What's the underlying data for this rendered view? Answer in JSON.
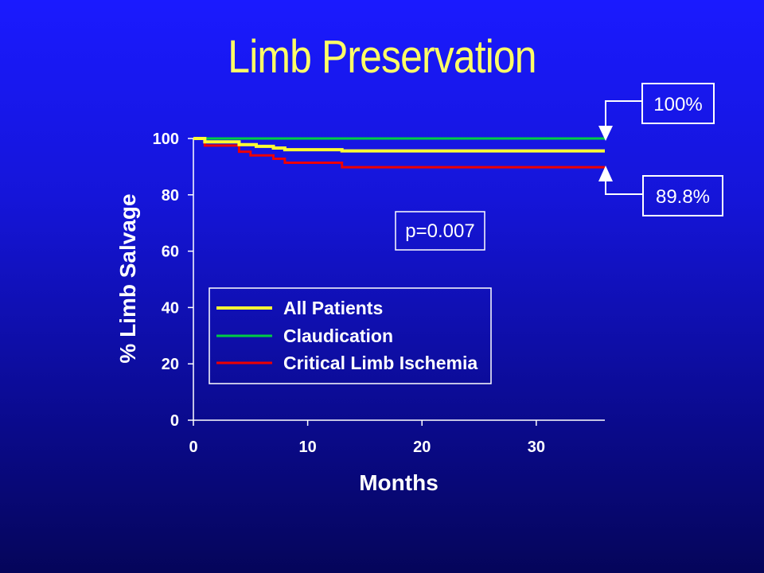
{
  "slide": {
    "title": "Limb Preservation"
  },
  "colors": {
    "background_top": "#1a1aff",
    "background_bottom": "#05055a",
    "title": "#ffff66",
    "all_patients": "#ffff33",
    "claudication": "#00cc44",
    "cli": "#ee0000"
  },
  "chart_data": {
    "type": "line",
    "step": true,
    "xlabel": "Months",
    "ylabel": "% Limb Salvage",
    "xlim": [
      0,
      36
    ],
    "ylim": [
      0,
      100
    ],
    "xticks": [
      "0",
      "10",
      "20",
      "30"
    ],
    "yticks": [
      "0",
      "20",
      "40",
      "60",
      "80",
      "100"
    ],
    "legend_position": "bottom-left",
    "series": [
      {
        "name": "All Patients",
        "color": "#ffff33",
        "points": [
          [
            0,
            100
          ],
          [
            1,
            98.8
          ],
          [
            4,
            97.8
          ],
          [
            5.5,
            97.2
          ],
          [
            7,
            96.6
          ],
          [
            8,
            96.0
          ],
          [
            13,
            95.6
          ],
          [
            36,
            95.6
          ]
        ]
      },
      {
        "name": "Claudication",
        "color": "#00cc44",
        "points": [
          [
            0,
            100
          ],
          [
            36,
            100
          ]
        ]
      },
      {
        "name": "Critical Limb Ischemia",
        "color": "#ee0000",
        "points": [
          [
            0,
            100
          ],
          [
            1,
            97.5
          ],
          [
            4,
            95.3
          ],
          [
            5,
            94.0
          ],
          [
            7,
            92.8
          ],
          [
            8,
            91.4
          ],
          [
            13,
            89.8
          ],
          [
            36,
            89.8
          ]
        ]
      }
    ],
    "annotations": {
      "pvalue": "p=0.007",
      "top_callout": "100%",
      "bottom_callout": "89.8%"
    }
  }
}
